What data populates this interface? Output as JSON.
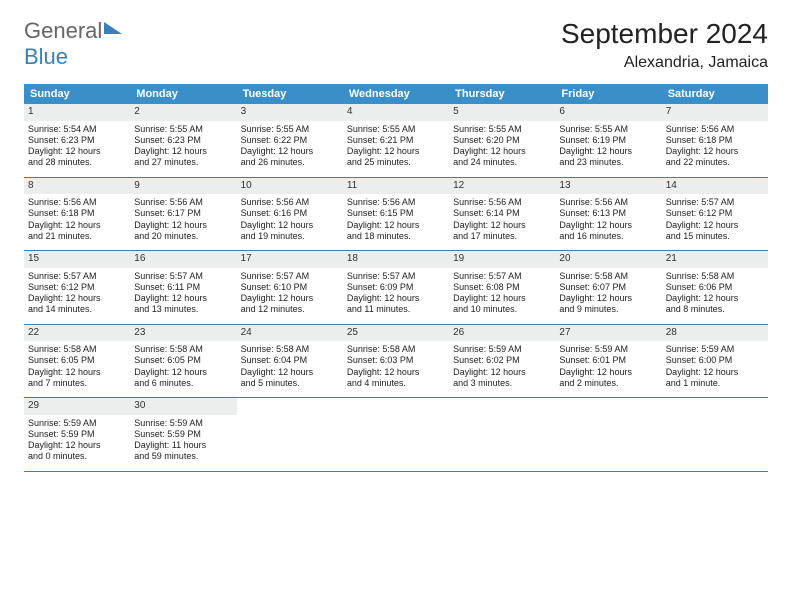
{
  "logo": {
    "top": "General",
    "bottom": "Blue"
  },
  "title": "September 2024",
  "location": "Alexandria, Jamaica",
  "colors": {
    "header_bg": "#3a8fc8",
    "header_text": "#ffffff",
    "daynum_bg": "#eceded",
    "row_border": "#3a7fb8",
    "brand_blue": "#3a7fb8",
    "text": "#222222"
  },
  "days_of_week": [
    "Sunday",
    "Monday",
    "Tuesday",
    "Wednesday",
    "Thursday",
    "Friday",
    "Saturday"
  ],
  "weeks": [
    [
      {
        "n": 1,
        "sr": "5:54 AM",
        "ss": "6:23 PM",
        "dl1": "Daylight: 12 hours",
        "dl2": "and 28 minutes."
      },
      {
        "n": 2,
        "sr": "5:55 AM",
        "ss": "6:23 PM",
        "dl1": "Daylight: 12 hours",
        "dl2": "and 27 minutes."
      },
      {
        "n": 3,
        "sr": "5:55 AM",
        "ss": "6:22 PM",
        "dl1": "Daylight: 12 hours",
        "dl2": "and 26 minutes."
      },
      {
        "n": 4,
        "sr": "5:55 AM",
        "ss": "6:21 PM",
        "dl1": "Daylight: 12 hours",
        "dl2": "and 25 minutes."
      },
      {
        "n": 5,
        "sr": "5:55 AM",
        "ss": "6:20 PM",
        "dl1": "Daylight: 12 hours",
        "dl2": "and 24 minutes."
      },
      {
        "n": 6,
        "sr": "5:55 AM",
        "ss": "6:19 PM",
        "dl1": "Daylight: 12 hours",
        "dl2": "and 23 minutes."
      },
      {
        "n": 7,
        "sr": "5:56 AM",
        "ss": "6:18 PM",
        "dl1": "Daylight: 12 hours",
        "dl2": "and 22 minutes."
      }
    ],
    [
      {
        "n": 8,
        "sr": "5:56 AM",
        "ss": "6:18 PM",
        "dl1": "Daylight: 12 hours",
        "dl2": "and 21 minutes."
      },
      {
        "n": 9,
        "sr": "5:56 AM",
        "ss": "6:17 PM",
        "dl1": "Daylight: 12 hours",
        "dl2": "and 20 minutes."
      },
      {
        "n": 10,
        "sr": "5:56 AM",
        "ss": "6:16 PM",
        "dl1": "Daylight: 12 hours",
        "dl2": "and 19 minutes."
      },
      {
        "n": 11,
        "sr": "5:56 AM",
        "ss": "6:15 PM",
        "dl1": "Daylight: 12 hours",
        "dl2": "and 18 minutes."
      },
      {
        "n": 12,
        "sr": "5:56 AM",
        "ss": "6:14 PM",
        "dl1": "Daylight: 12 hours",
        "dl2": "and 17 minutes."
      },
      {
        "n": 13,
        "sr": "5:56 AM",
        "ss": "6:13 PM",
        "dl1": "Daylight: 12 hours",
        "dl2": "and 16 minutes."
      },
      {
        "n": 14,
        "sr": "5:57 AM",
        "ss": "6:12 PM",
        "dl1": "Daylight: 12 hours",
        "dl2": "and 15 minutes."
      }
    ],
    [
      {
        "n": 15,
        "sr": "5:57 AM",
        "ss": "6:12 PM",
        "dl1": "Daylight: 12 hours",
        "dl2": "and 14 minutes."
      },
      {
        "n": 16,
        "sr": "5:57 AM",
        "ss": "6:11 PM",
        "dl1": "Daylight: 12 hours",
        "dl2": "and 13 minutes."
      },
      {
        "n": 17,
        "sr": "5:57 AM",
        "ss": "6:10 PM",
        "dl1": "Daylight: 12 hours",
        "dl2": "and 12 minutes."
      },
      {
        "n": 18,
        "sr": "5:57 AM",
        "ss": "6:09 PM",
        "dl1": "Daylight: 12 hours",
        "dl2": "and 11 minutes."
      },
      {
        "n": 19,
        "sr": "5:57 AM",
        "ss": "6:08 PM",
        "dl1": "Daylight: 12 hours",
        "dl2": "and 10 minutes."
      },
      {
        "n": 20,
        "sr": "5:58 AM",
        "ss": "6:07 PM",
        "dl1": "Daylight: 12 hours",
        "dl2": "and 9 minutes."
      },
      {
        "n": 21,
        "sr": "5:58 AM",
        "ss": "6:06 PM",
        "dl1": "Daylight: 12 hours",
        "dl2": "and 8 minutes."
      }
    ],
    [
      {
        "n": 22,
        "sr": "5:58 AM",
        "ss": "6:05 PM",
        "dl1": "Daylight: 12 hours",
        "dl2": "and 7 minutes."
      },
      {
        "n": 23,
        "sr": "5:58 AM",
        "ss": "6:05 PM",
        "dl1": "Daylight: 12 hours",
        "dl2": "and 6 minutes."
      },
      {
        "n": 24,
        "sr": "5:58 AM",
        "ss": "6:04 PM",
        "dl1": "Daylight: 12 hours",
        "dl2": "and 5 minutes."
      },
      {
        "n": 25,
        "sr": "5:58 AM",
        "ss": "6:03 PM",
        "dl1": "Daylight: 12 hours",
        "dl2": "and 4 minutes."
      },
      {
        "n": 26,
        "sr": "5:59 AM",
        "ss": "6:02 PM",
        "dl1": "Daylight: 12 hours",
        "dl2": "and 3 minutes."
      },
      {
        "n": 27,
        "sr": "5:59 AM",
        "ss": "6:01 PM",
        "dl1": "Daylight: 12 hours",
        "dl2": "and 2 minutes."
      },
      {
        "n": 28,
        "sr": "5:59 AM",
        "ss": "6:00 PM",
        "dl1": "Daylight: 12 hours",
        "dl2": "and 1 minute."
      }
    ],
    [
      {
        "n": 29,
        "sr": "5:59 AM",
        "ss": "5:59 PM",
        "dl1": "Daylight: 12 hours",
        "dl2": "and 0 minutes."
      },
      {
        "n": 30,
        "sr": "5:59 AM",
        "ss": "5:59 PM",
        "dl1": "Daylight: 11 hours",
        "dl2": "and 59 minutes."
      },
      null,
      null,
      null,
      null,
      null
    ]
  ],
  "labels": {
    "sunrise": "Sunrise:",
    "sunset": "Sunset:"
  }
}
